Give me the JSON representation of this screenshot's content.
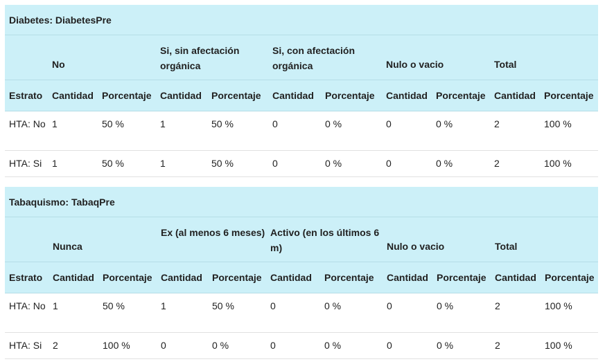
{
  "tables": [
    {
      "title": "Diabetes: DiabetesPre",
      "groups": [
        "No",
        "Si, sin afectación orgánica",
        "Si, con afectación orgánica",
        "Nulo o vacio",
        "Total"
      ],
      "headers": [
        "Estrato",
        "Cantidad",
        "Porcentaje",
        "Cantidad",
        "Porcentaje",
        "Cantidad",
        "Porcentaje",
        "Cantidad",
        "Porcentaje",
        "Cantidad",
        "Porcentaje"
      ],
      "rows": [
        [
          "HTA: No",
          "1",
          "50 %",
          "1",
          "50 %",
          "0",
          "0 %",
          "0",
          "0 %",
          "2",
          "100 %"
        ],
        [
          "HTA: Si",
          "1",
          "50 %",
          "1",
          "50 %",
          "0",
          "0 %",
          "0",
          "0 %",
          "2",
          "100 %"
        ]
      ]
    },
    {
      "title": "Tabaquismo: TabaqPre",
      "groups": [
        "Nunca",
        "Ex (al menos 6 meses)",
        "Activo (en los últimos 6 m)",
        "Nulo o vacio",
        "Total"
      ],
      "headers": [
        "Estrato",
        "Cantidad",
        "Porcentaje",
        "Cantidad",
        "Porcentaje",
        "Cantidad",
        "Porcentaje",
        "Cantidad",
        "Porcentaje",
        "Cantidad",
        "Porcentaje"
      ],
      "rows": [
        [
          "HTA: No",
          "1",
          "50 %",
          "1",
          "50 %",
          "0",
          "0 %",
          "0",
          "0 %",
          "2",
          "100 %"
        ],
        [
          "HTA: Si",
          "2",
          "100 %",
          "0",
          "0 %",
          "0",
          "0 %",
          "0",
          "0 %",
          "2",
          "100 %"
        ]
      ]
    }
  ]
}
